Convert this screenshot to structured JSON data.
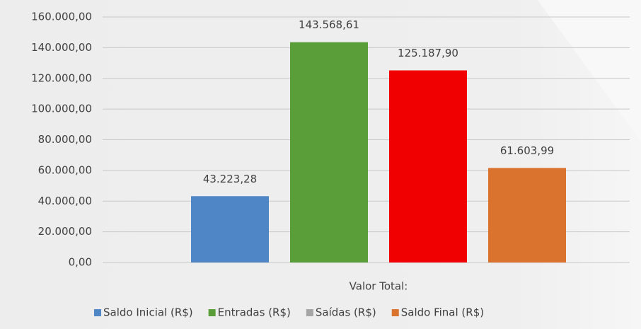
{
  "chart_data": {
    "type": "bar",
    "categories": [
      "Valor Total:"
    ],
    "series": [
      {
        "name": "Saldo Inicial (R$)",
        "color": "#4f86c6",
        "values": [
          43223.28
        ],
        "value_labels": [
          "43.223,28"
        ]
      },
      {
        "name": "Entradas (R$)",
        "color": "#5a9e3a",
        "values": [
          143568.61
        ],
        "value_labels": [
          "143.568,61"
        ]
      },
      {
        "name": "Saídas (R$)",
        "color": "#f00000",
        "legend_color": "#a5a5a5",
        "values": [
          125187.9
        ],
        "value_labels": [
          "125.187,90"
        ]
      },
      {
        "name": "Saldo Final (R$)",
        "color": "#d9732e",
        "values": [
          61603.99
        ],
        "value_labels": [
          "61.603,99"
        ]
      }
    ],
    "ylim": [
      0,
      160000
    ],
    "yticks": [
      {
        "value": 0,
        "label": "0,00"
      },
      {
        "value": 20000,
        "label": "20.000,00"
      },
      {
        "value": 40000,
        "label": "40.000,00"
      },
      {
        "value": 60000,
        "label": "60.000,00"
      },
      {
        "value": 80000,
        "label": "80.000,00"
      },
      {
        "value": 100000,
        "label": "100.000,00"
      },
      {
        "value": 120000,
        "label": "120.000,00"
      },
      {
        "value": 140000,
        "label": "140.000,00"
      },
      {
        "value": 160000,
        "label": "160.000,00"
      }
    ],
    "grid": true,
    "legend": "bottom"
  }
}
